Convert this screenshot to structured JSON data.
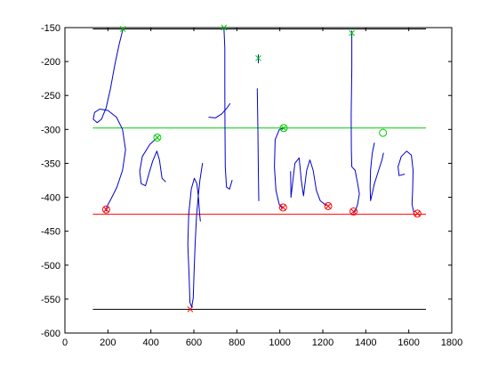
{
  "chart_data": {
    "type": "line",
    "title": "",
    "xlabel": "",
    "ylabel": "",
    "xlim": [
      0,
      1800
    ],
    "ylim": [
      -600,
      -150
    ],
    "xticks": [
      0,
      200,
      400,
      600,
      800,
      1000,
      1200,
      1400,
      1600,
      1800
    ],
    "yticks": [
      -150,
      -200,
      -250,
      -300,
      -350,
      -400,
      -450,
      -500,
      -550,
      -600
    ],
    "grid": false,
    "reference_lines": [
      {
        "y": -152,
        "x": [
          130,
          1680
        ],
        "color": "#000000"
      },
      {
        "y": -298,
        "x": [
          130,
          1680
        ],
        "color": "#00cc00"
      },
      {
        "y": -425,
        "x": [
          130,
          1680
        ],
        "color": "#ff0000"
      },
      {
        "y": -565,
        "x": [
          130,
          1680
        ],
        "color": "#000000"
      }
    ],
    "strokes": [
      {
        "color": "#0000cc",
        "points": [
          [
            270,
            -152
          ],
          [
            252,
            -175
          ],
          [
            232,
            -205
          ],
          [
            212,
            -240
          ],
          [
            192,
            -268
          ],
          [
            170,
            -285
          ],
          [
            150,
            -290
          ],
          [
            132,
            -285
          ],
          [
            138,
            -275
          ],
          [
            162,
            -270
          ],
          [
            200,
            -272
          ],
          [
            240,
            -282
          ],
          [
            268,
            -300
          ],
          [
            282,
            -330
          ],
          [
            268,
            -360
          ],
          [
            242,
            -385
          ],
          [
            215,
            -402
          ],
          [
            195,
            -414
          ],
          [
            192,
            -420
          ]
        ]
      },
      {
        "color": "#0000cc",
        "points": [
          [
            430,
            -312
          ],
          [
            395,
            -322
          ],
          [
            360,
            -340
          ],
          [
            348,
            -362
          ],
          [
            355,
            -380
          ],
          [
            375,
            -383
          ],
          [
            390,
            -366
          ],
          [
            408,
            -347
          ],
          [
            428,
            -332
          ],
          [
            440,
            -345
          ],
          [
            452,
            -372
          ],
          [
            468,
            -377
          ]
        ]
      },
      {
        "color": "#0000cc",
        "points": [
          [
            640,
            -350
          ],
          [
            628,
            -375
          ],
          [
            620,
            -400
          ],
          [
            612,
            -430
          ],
          [
            606,
            -470
          ],
          [
            601,
            -512
          ],
          [
            597,
            -548
          ],
          [
            590,
            -562
          ],
          [
            582,
            -555
          ],
          [
            578,
            -518
          ],
          [
            572,
            -470
          ],
          [
            576,
            -425
          ],
          [
            588,
            -388
          ],
          [
            602,
            -372
          ],
          [
            614,
            -380
          ],
          [
            622,
            -402
          ],
          [
            626,
            -422
          ],
          [
            630,
            -435
          ]
        ]
      },
      {
        "color": "#0000cc",
        "points": [
          [
            740,
            -150
          ],
          [
            744,
            -180
          ],
          [
            744,
            -240
          ],
          [
            745,
            -300
          ],
          [
            746,
            -355
          ],
          [
            752,
            -385
          ],
          [
            766,
            -388
          ],
          [
            778,
            -375
          ]
        ]
      },
      {
        "color": "#0000cc",
        "points": [
          [
            670,
            -282
          ],
          [
            700,
            -283
          ],
          [
            730,
            -277
          ],
          [
            755,
            -268
          ],
          [
            768,
            -262
          ]
        ]
      },
      {
        "color": "#0000cc",
        "points": [
          [
            900,
            -190
          ],
          [
            900,
            -202
          ]
        ]
      },
      {
        "color": "#0000cc",
        "points": [
          [
            895,
            -240
          ],
          [
            898,
            -300
          ],
          [
            900,
            -360
          ],
          [
            902,
            -405
          ]
        ]
      },
      {
        "color": "#0000cc",
        "points": [
          [
            1018,
            -298
          ],
          [
            998,
            -300
          ],
          [
            978,
            -315
          ],
          [
            975,
            -355
          ],
          [
            982,
            -390
          ],
          [
            997,
            -410
          ],
          [
            1010,
            -416
          ]
        ]
      },
      {
        "color": "#0000cc",
        "points": [
          [
            1050,
            -362
          ],
          [
            1052,
            -400
          ],
          [
            1070,
            -350
          ],
          [
            1090,
            -342
          ],
          [
            1100,
            -375
          ],
          [
            1110,
            -398
          ],
          [
            1125,
            -360
          ],
          [
            1140,
            -345
          ],
          [
            1155,
            -360
          ],
          [
            1170,
            -390
          ],
          [
            1188,
            -405
          ],
          [
            1215,
            -412
          ]
        ]
      },
      {
        "color": "#0000cc",
        "points": [
          [
            1335,
            -155
          ],
          [
            1335,
            -210
          ],
          [
            1332,
            -280
          ],
          [
            1333,
            -330
          ],
          [
            1335,
            -355
          ],
          [
            1350,
            -360
          ],
          [
            1362,
            -380
          ],
          [
            1370,
            -395
          ],
          [
            1362,
            -410
          ],
          [
            1352,
            -420
          ],
          [
            1343,
            -423
          ]
        ]
      },
      {
        "color": "#0000cc",
        "points": [
          [
            1440,
            -320
          ],
          [
            1430,
            -335
          ],
          [
            1422,
            -360
          ],
          [
            1420,
            -385
          ],
          [
            1422,
            -405
          ],
          [
            1440,
            -380
          ],
          [
            1460,
            -360
          ],
          [
            1475,
            -345
          ],
          [
            1482,
            -335
          ]
        ]
      },
      {
        "color": "#0000cc",
        "points": [
          [
            1580,
            -366
          ],
          [
            1555,
            -368
          ],
          [
            1550,
            -355
          ],
          [
            1565,
            -340
          ],
          [
            1590,
            -332
          ],
          [
            1612,
            -338
          ],
          [
            1620,
            -360
          ],
          [
            1618,
            -390
          ],
          [
            1615,
            -410
          ],
          [
            1625,
            -425
          ]
        ]
      }
    ],
    "markers": [
      {
        "x": 270,
        "y": -152,
        "symbol": "x",
        "color": "#00cc00"
      },
      {
        "x": 740,
        "y": -150,
        "symbol": "x",
        "color": "#00cc00"
      },
      {
        "x": 900,
        "y": -195,
        "symbol": "x",
        "color": "#00cc00"
      },
      {
        "x": 1335,
        "y": -158,
        "symbol": "x",
        "color": "#00cc00"
      },
      {
        "x": 430,
        "y": -312,
        "symbol": "circle-x",
        "color": "#00cc00"
      },
      {
        "x": 1018,
        "y": -298,
        "symbol": "circle-x",
        "color": "#00cc00"
      },
      {
        "x": 1480,
        "y": -305,
        "symbol": "circle",
        "color": "#00cc00"
      },
      {
        "x": 192,
        "y": -418,
        "symbol": "circle-x",
        "color": "#ff0000"
      },
      {
        "x": 1015,
        "y": -415,
        "symbol": "circle-x",
        "color": "#ff0000"
      },
      {
        "x": 1225,
        "y": -413,
        "symbol": "circle-x",
        "color": "#ff0000"
      },
      {
        "x": 1343,
        "y": -421,
        "symbol": "circle-x",
        "color": "#ff0000"
      },
      {
        "x": 1640,
        "y": -424,
        "symbol": "circle-x",
        "color": "#ff0000"
      },
      {
        "x": 583,
        "y": -565,
        "symbol": "x",
        "color": "#ff0000"
      }
    ]
  }
}
